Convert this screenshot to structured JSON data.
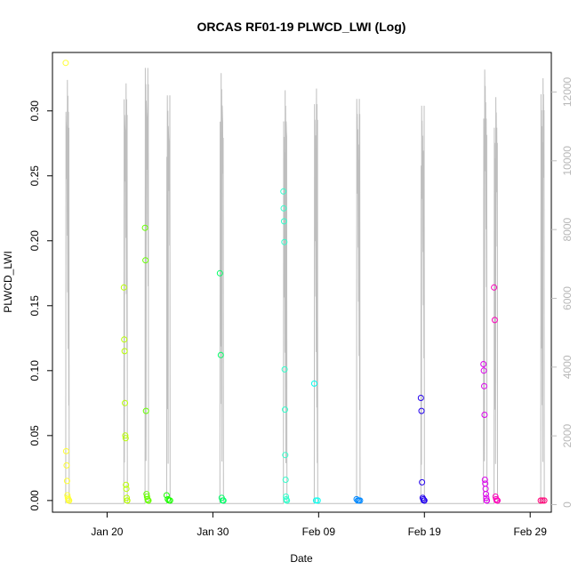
{
  "chart_data": {
    "type": "scatter",
    "title": "ORCAS RF01-19 PLWCD_LWI (Log)",
    "xlabel": "Date",
    "ylabel": "PLWCD_LWI",
    "x_range": [
      "2016-01-14T20:00",
      "2016-03-02T00:00"
    ],
    "ylim": [
      -0.009,
      0.345
    ],
    "y2lim": [
      -220,
      13150
    ],
    "x_ticks": [
      {
        "date": "2016-01-20",
        "label": "Jan 20"
      },
      {
        "date": "2016-01-30",
        "label": "Jan 30"
      },
      {
        "date": "2016-02-09",
        "label": "Feb 09"
      },
      {
        "date": "2016-02-19",
        "label": "Feb 19"
      },
      {
        "date": "2016-02-29",
        "label": "Feb 29"
      }
    ],
    "y_ticks": [
      0.0,
      0.05,
      0.1,
      0.15,
      0.2,
      0.25,
      0.3
    ],
    "y_tick_labels": [
      "0.00",
      "0.05",
      "0.10",
      "0.15",
      "0.20",
      "0.25",
      "0.30"
    ],
    "y2_ticks": [
      0,
      2000,
      4000,
      6000,
      8000,
      10000,
      12000
    ],
    "y2_tick_labels": [
      "0",
      "2000",
      "4000",
      "6000",
      "8000",
      "10000",
      "12000"
    ],
    "y2_color": "#bebebe",
    "grid": false,
    "legend": "none",
    "flights": [
      {
        "color": "#ffff33",
        "start": "2016-01-16T02:00",
        "end": "2016-01-16T10:00",
        "max_alt": 12350,
        "values": [
          0.337,
          0.038,
          0.027,
          0.015,
          0.004,
          0.002,
          0.001,
          0.0,
          0.0
        ]
      },
      {
        "color": "#b8ff00",
        "start": "2016-01-21T14:00",
        "end": "2016-01-21T22:00",
        "max_alt": 12250,
        "values": [
          0.164,
          0.124,
          0.115,
          0.075,
          0.05,
          0.048,
          0.012,
          0.009,
          0.002,
          0.0,
          0.0
        ]
      },
      {
        "color": "#66ff00",
        "start": "2016-01-23T14:00",
        "end": "2016-01-23T22:00",
        "max_alt": 12700,
        "values": [
          0.21,
          0.185,
          0.069,
          0.005,
          0.003,
          0.001,
          0.0,
          0.0
        ]
      },
      {
        "color": "#1aff00",
        "start": "2016-01-25T15:00",
        "end": "2016-01-25T23:00",
        "max_alt": 11900,
        "values": [
          0.004,
          0.001,
          0.0,
          0.0
        ]
      },
      {
        "color": "#00ff66",
        "start": "2016-01-30T16:00",
        "end": "2016-01-31T00:00",
        "max_alt": 12550,
        "values": [
          0.175,
          0.112,
          0.002,
          0.0,
          0.0
        ]
      },
      {
        "color": "#33ffcc",
        "start": "2016-02-05T16:00",
        "end": "2016-02-06T00:00",
        "max_alt": 12050,
        "values": [
          0.238,
          0.225,
          0.215,
          0.199,
          0.101,
          0.07,
          0.035,
          0.016,
          0.003,
          0.001,
          0.0,
          0.0
        ]
      },
      {
        "color": "#00ffee",
        "start": "2016-02-08T14:00",
        "end": "2016-02-08T22:00",
        "max_alt": 12100,
        "values": [
          0.09,
          0.0,
          0.0
        ]
      },
      {
        "color": "#0088ff",
        "start": "2016-02-12T14:00",
        "end": "2016-02-12T22:00",
        "max_alt": 11800,
        "values": [
          0.001,
          0.0,
          0.0,
          0.0
        ]
      },
      {
        "color": "#2200ee",
        "start": "2016-02-18T16:00",
        "end": "2016-02-19T00:00",
        "max_alt": 11600,
        "values": [
          0.079,
          0.069,
          0.014,
          0.002,
          0.001,
          0.0,
          0.0
        ]
      },
      {
        "color": "#dd00ee",
        "start": "2016-02-24T14:00",
        "end": "2016-02-24T22:00",
        "max_alt": 12650,
        "values": [
          0.105,
          0.1,
          0.088,
          0.066,
          0.016,
          0.013,
          0.009,
          0.005,
          0.002,
          0.0,
          0.0
        ]
      },
      {
        "color": "#ff00bb",
        "start": "2016-02-25T14:00",
        "end": "2016-02-25T22:00",
        "max_alt": 11850,
        "values": [
          0.164,
          0.139,
          0.003,
          0.001,
          0.0,
          0.0
        ]
      },
      {
        "color": "#ff0077",
        "start": "2016-03-01T00:00",
        "end": "2016-03-01T08:00",
        "max_alt": 12400,
        "values": [
          0.0,
          0.0,
          0.0
        ]
      }
    ]
  }
}
